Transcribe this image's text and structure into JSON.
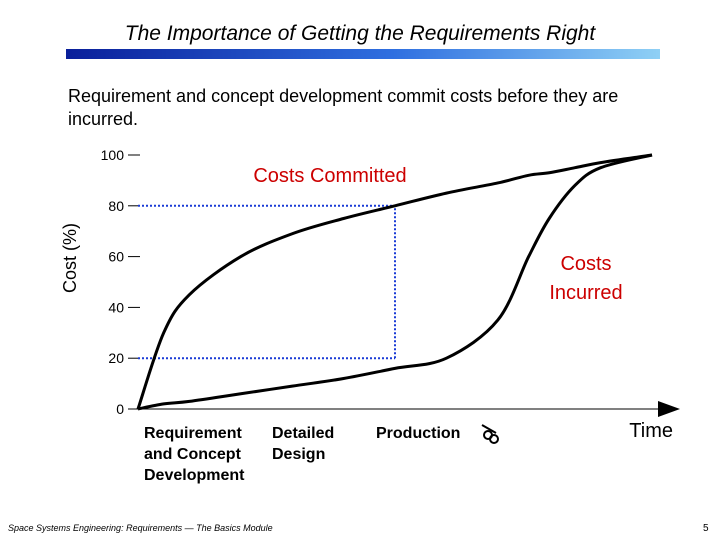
{
  "slide": {
    "title": "The Importance of Getting the Requirements Right",
    "subtitle": "Requirement and concept development commit costs before they are incurred.",
    "footer": "Space Systems Engineering: Requirements — The Basics Module",
    "page_number": "5",
    "accent_color": "#1a3bd6"
  },
  "chart_data": {
    "type": "line",
    "ylabel": "Cost (%)",
    "xlabel": "Time",
    "ylim": [
      0,
      100
    ],
    "yticks": [
      "100",
      "80",
      "60",
      "40",
      "20",
      "0"
    ],
    "x": [
      0,
      5,
      10,
      20,
      30,
      40,
      50,
      60,
      70,
      76,
      80,
      85,
      90,
      100
    ],
    "phases": [
      {
        "label": "Requirement and Concept Development",
        "lines": [
          "Requirement",
          "and Concept",
          "Development"
        ]
      },
      {
        "label": "Detailed Design",
        "lines": [
          "Detailed",
          "Design"
        ]
      },
      {
        "label": "Production",
        "lines": [
          "Production"
        ]
      }
    ],
    "series": [
      {
        "name": "Costs Committed",
        "values": [
          0,
          30,
          45,
          60,
          69,
          75,
          80,
          85,
          89,
          92,
          93,
          95,
          97,
          100
        ],
        "color": "#cc0000"
      },
      {
        "name": "Costs Incurred",
        "values": [
          0,
          2,
          3,
          6,
          9,
          12,
          16,
          20,
          35,
          60,
          75,
          88,
          95,
          100
        ],
        "color": "#cc0000"
      }
    ],
    "series_label_lines": {
      "Costs Incurred": [
        "Costs",
        "Incurred"
      ]
    },
    "reference_lines": [
      {
        "y": 80,
        "x_end": 50,
        "color": "#1a3bd6"
      },
      {
        "y": 20,
        "x_end": 50,
        "color": "#1a3bd6"
      },
      {
        "x": 50,
        "y_from": 20,
        "y_to": 80,
        "color": "#1a3bd6"
      }
    ],
    "grid": false,
    "legend": "none"
  }
}
